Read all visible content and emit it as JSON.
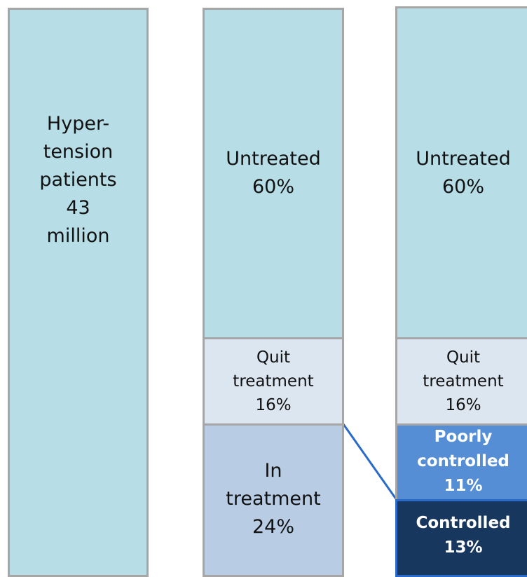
{
  "columns": [
    {
      "segments": [
        {
          "lines": [
            "Hyper-",
            "tension",
            "patients",
            "43",
            "million"
          ]
        }
      ]
    },
    {
      "segments": [
        {
          "lines": [
            "Untreated",
            "60%"
          ]
        },
        {
          "lines": [
            "Quit",
            "treatment",
            "16%"
          ]
        },
        {
          "lines": [
            "In",
            "treatment",
            "24%"
          ]
        }
      ]
    },
    {
      "segments": [
        {
          "lines": [
            "Untreated",
            "60%"
          ]
        },
        {
          "lines": [
            "Quit",
            "treatment",
            "16%"
          ]
        },
        {
          "lines": [
            "Poorly",
            "controlled",
            "11%"
          ]
        },
        {
          "lines": [
            "Controlled",
            "13%"
          ]
        }
      ]
    }
  ]
}
